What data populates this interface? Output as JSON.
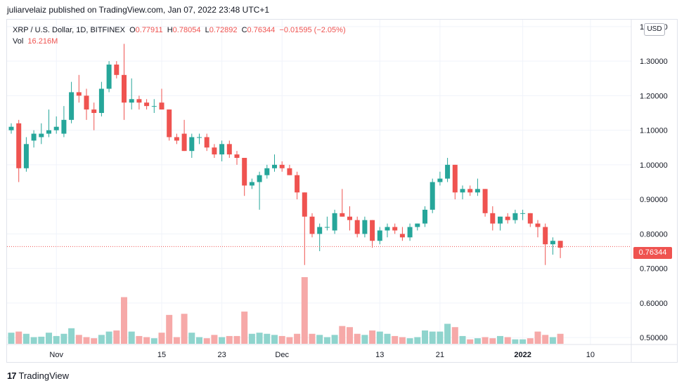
{
  "attribution": "juliarvelaiz published on TradingView.com, Jan 07, 2022 23:48 UTC+1",
  "legend": {
    "symbol": "XRP / U.S. Dollar, 1D, BITFINEX",
    "o_label": "O",
    "o_value": "0.77911",
    "h_label": "H",
    "h_value": "0.78054",
    "l_label": "L",
    "l_value": "0.72892",
    "c_label": "C",
    "c_value": "0.76344",
    "change": "−0.01595 (−2.05%)",
    "vol_label": "Vol",
    "vol_value": "16.216M"
  },
  "currency_button": "USD",
  "last_price_label": "0.76344",
  "footer_brand": "TradingView",
  "footer_logo": "17",
  "colors": {
    "up": "#26a69a",
    "down": "#ef5350",
    "up_vol": "#8fd4cd",
    "down_vol": "#f6a9a8",
    "grid": "#f0f3fa"
  },
  "chart_data": {
    "type": "candlestick",
    "title": "XRP / U.S. Dollar, 1D, BITFINEX",
    "ylim": [
      0.48,
      1.42
    ],
    "y_ticks": [
      "0.50000",
      "0.60000",
      "0.70000",
      "0.80000",
      "0.90000",
      "1.00000",
      "1.10000",
      "1.20000",
      "1.30000",
      "1.40000"
    ],
    "y_tick_values": [
      0.5,
      0.6,
      0.7,
      0.8,
      0.9,
      1.0,
      1.1,
      1.2,
      1.3,
      1.4
    ],
    "x_ticks": [
      {
        "label": "Nov",
        "index": 6
      },
      {
        "label": "15",
        "index": 20
      },
      {
        "label": "23",
        "index": 28
      },
      {
        "label": "Dec",
        "index": 36
      },
      {
        "label": "13",
        "index": 49
      },
      {
        "label": "21",
        "index": 57
      },
      {
        "label": "2022",
        "index": 68
      },
      {
        "label": "10",
        "index": 77
      }
    ],
    "last_price": 0.76344,
    "candles": [
      {
        "o": 1.1,
        "h": 1.12,
        "l": 1.09,
        "c": 1.11,
        "v": 0.5
      },
      {
        "o": 1.12,
        "h": 1.13,
        "l": 0.95,
        "c": 0.99,
        "v": 0.55
      },
      {
        "o": 0.99,
        "h": 1.08,
        "l": 0.98,
        "c": 1.06,
        "v": 0.45
      },
      {
        "o": 1.07,
        "h": 1.1,
        "l": 1.05,
        "c": 1.09,
        "v": 0.3
      },
      {
        "o": 1.08,
        "h": 1.12,
        "l": 1.06,
        "c": 1.09,
        "v": 0.32
      },
      {
        "o": 1.09,
        "h": 1.16,
        "l": 1.08,
        "c": 1.1,
        "v": 0.5
      },
      {
        "o": 1.1,
        "h": 1.14,
        "l": 1.09,
        "c": 1.11,
        "v": 0.35
      },
      {
        "o": 1.09,
        "h": 1.17,
        "l": 1.08,
        "c": 1.13,
        "v": 0.45
      },
      {
        "o": 1.13,
        "h": 1.24,
        "l": 1.12,
        "c": 1.21,
        "v": 0.7
      },
      {
        "o": 1.21,
        "h": 1.26,
        "l": 1.18,
        "c": 1.2,
        "v": 0.4
      },
      {
        "o": 1.2,
        "h": 1.22,
        "l": 1.13,
        "c": 1.16,
        "v": 0.3
      },
      {
        "o": 1.16,
        "h": 1.18,
        "l": 1.1,
        "c": 1.15,
        "v": 0.25
      },
      {
        "o": 1.15,
        "h": 1.24,
        "l": 1.14,
        "c": 1.22,
        "v": 0.4
      },
      {
        "o": 1.22,
        "h": 1.3,
        "l": 1.21,
        "c": 1.29,
        "v": 0.55
      },
      {
        "o": 1.29,
        "h": 1.3,
        "l": 1.25,
        "c": 1.26,
        "v": 0.6
      },
      {
        "o": 1.26,
        "h": 1.35,
        "l": 1.13,
        "c": 1.18,
        "v": 2.1
      },
      {
        "o": 1.18,
        "h": 1.25,
        "l": 1.16,
        "c": 1.19,
        "v": 0.55
      },
      {
        "o": 1.19,
        "h": 1.2,
        "l": 1.16,
        "c": 1.18,
        "v": 0.35
      },
      {
        "o": 1.18,
        "h": 1.19,
        "l": 1.16,
        "c": 1.17,
        "v": 0.3
      },
      {
        "o": 1.17,
        "h": 1.19,
        "l": 1.15,
        "c": 1.17,
        "v": 0.25
      },
      {
        "o": 1.18,
        "h": 1.22,
        "l": 1.16,
        "c": 1.16,
        "v": 0.5
      },
      {
        "o": 1.16,
        "h": 1.16,
        "l": 1.07,
        "c": 1.08,
        "v": 1.3
      },
      {
        "o": 1.08,
        "h": 1.09,
        "l": 1.06,
        "c": 1.07,
        "v": 0.3
      },
      {
        "o": 1.09,
        "h": 1.13,
        "l": 1.04,
        "c": 1.04,
        "v": 1.35
      },
      {
        "o": 1.04,
        "h": 1.09,
        "l": 1.02,
        "c": 1.08,
        "v": 0.5
      },
      {
        "o": 1.08,
        "h": 1.09,
        "l": 1.06,
        "c": 1.08,
        "v": 0.3
      },
      {
        "o": 1.08,
        "h": 1.09,
        "l": 1.04,
        "c": 1.05,
        "v": 0.25
      },
      {
        "o": 1.05,
        "h": 1.06,
        "l": 1.02,
        "c": 1.03,
        "v": 0.4
      },
      {
        "o": 1.03,
        "h": 1.07,
        "l": 1.01,
        "c": 1.06,
        "v": 0.3
      },
      {
        "o": 1.06,
        "h": 1.07,
        "l": 1.02,
        "c": 1.03,
        "v": 0.35
      },
      {
        "o": 1.03,
        "h": 1.04,
        "l": 1.0,
        "c": 1.02,
        "v": 0.35
      },
      {
        "o": 1.02,
        "h": 1.02,
        "l": 0.91,
        "c": 0.94,
        "v": 1.45
      },
      {
        "o": 0.94,
        "h": 0.96,
        "l": 0.93,
        "c": 0.95,
        "v": 0.45
      },
      {
        "o": 0.95,
        "h": 0.98,
        "l": 0.87,
        "c": 0.97,
        "v": 0.5
      },
      {
        "o": 0.97,
        "h": 1.0,
        "l": 0.96,
        "c": 0.99,
        "v": 0.45
      },
      {
        "o": 0.99,
        "h": 1.03,
        "l": 0.98,
        "c": 1.0,
        "v": 0.4
      },
      {
        "o": 1.0,
        "h": 1.01,
        "l": 0.98,
        "c": 0.99,
        "v": 0.35
      },
      {
        "o": 0.99,
        "h": 1.0,
        "l": 0.97,
        "c": 0.97,
        "v": 0.3
      },
      {
        "o": 0.97,
        "h": 0.98,
        "l": 0.9,
        "c": 0.92,
        "v": 0.45
      },
      {
        "o": 0.92,
        "h": 0.92,
        "l": 0.71,
        "c": 0.85,
        "v": 3.0
      },
      {
        "o": 0.85,
        "h": 0.86,
        "l": 0.79,
        "c": 0.8,
        "v": 0.45
      },
      {
        "o": 0.8,
        "h": 0.83,
        "l": 0.75,
        "c": 0.82,
        "v": 0.4
      },
      {
        "o": 0.82,
        "h": 0.85,
        "l": 0.81,
        "c": 0.82,
        "v": 0.3
      },
      {
        "o": 0.81,
        "h": 0.87,
        "l": 0.8,
        "c": 0.86,
        "v": 0.4
      },
      {
        "o": 0.86,
        "h": 0.93,
        "l": 0.85,
        "c": 0.85,
        "v": 0.8
      },
      {
        "o": 0.85,
        "h": 0.88,
        "l": 0.81,
        "c": 0.84,
        "v": 0.75
      },
      {
        "o": 0.84,
        "h": 0.85,
        "l": 0.79,
        "c": 0.8,
        "v": 0.45
      },
      {
        "o": 0.8,
        "h": 0.85,
        "l": 0.79,
        "c": 0.84,
        "v": 0.4
      },
      {
        "o": 0.84,
        "h": 0.84,
        "l": 0.76,
        "c": 0.78,
        "v": 0.6
      },
      {
        "o": 0.78,
        "h": 0.82,
        "l": 0.77,
        "c": 0.81,
        "v": 0.55
      },
      {
        "o": 0.81,
        "h": 0.83,
        "l": 0.79,
        "c": 0.82,
        "v": 0.45
      },
      {
        "o": 0.82,
        "h": 0.83,
        "l": 0.8,
        "c": 0.81,
        "v": 0.35
      },
      {
        "o": 0.8,
        "h": 0.82,
        "l": 0.78,
        "c": 0.79,
        "v": 0.3
      },
      {
        "o": 0.79,
        "h": 0.83,
        "l": 0.78,
        "c": 0.82,
        "v": 0.25
      },
      {
        "o": 0.82,
        "h": 0.83,
        "l": 0.81,
        "c": 0.83,
        "v": 0.3
      },
      {
        "o": 0.83,
        "h": 0.88,
        "l": 0.82,
        "c": 0.87,
        "v": 0.6
      },
      {
        "o": 0.87,
        "h": 0.96,
        "l": 0.86,
        "c": 0.95,
        "v": 0.55
      },
      {
        "o": 0.95,
        "h": 0.98,
        "l": 0.94,
        "c": 0.96,
        "v": 0.55
      },
      {
        "o": 0.96,
        "h": 1.02,
        "l": 0.95,
        "c": 1.0,
        "v": 0.9
      },
      {
        "o": 1.0,
        "h": 1.0,
        "l": 0.9,
        "c": 0.92,
        "v": 0.75
      },
      {
        "o": 0.92,
        "h": 0.94,
        "l": 0.9,
        "c": 0.93,
        "v": 0.35
      },
      {
        "o": 0.93,
        "h": 0.94,
        "l": 0.91,
        "c": 0.92,
        "v": 0.2
      },
      {
        "o": 0.92,
        "h": 0.96,
        "l": 0.91,
        "c": 0.93,
        "v": 0.25
      },
      {
        "o": 0.93,
        "h": 0.93,
        "l": 0.85,
        "c": 0.86,
        "v": 0.3
      },
      {
        "o": 0.86,
        "h": 0.88,
        "l": 0.81,
        "c": 0.83,
        "v": 0.25
      },
      {
        "o": 0.83,
        "h": 0.85,
        "l": 0.81,
        "c": 0.85,
        "v": 0.35
      },
      {
        "o": 0.85,
        "h": 0.86,
        "l": 0.83,
        "c": 0.84,
        "v": 0.3
      },
      {
        "o": 0.84,
        "h": 0.87,
        "l": 0.83,
        "c": 0.86,
        "v": 0.2
      },
      {
        "o": 0.86,
        "h": 0.87,
        "l": 0.84,
        "c": 0.86,
        "v": 0.2
      },
      {
        "o": 0.86,
        "h": 0.86,
        "l": 0.82,
        "c": 0.83,
        "v": 0.25
      },
      {
        "o": 0.83,
        "h": 0.84,
        "l": 0.79,
        "c": 0.82,
        "v": 0.55
      },
      {
        "o": 0.82,
        "h": 0.83,
        "l": 0.71,
        "c": 0.77,
        "v": 0.4
      },
      {
        "o": 0.77,
        "h": 0.79,
        "l": 0.74,
        "c": 0.78,
        "v": 0.3
      },
      {
        "o": 0.78,
        "h": 0.78,
        "l": 0.73,
        "c": 0.76,
        "v": 0.45
      }
    ]
  }
}
